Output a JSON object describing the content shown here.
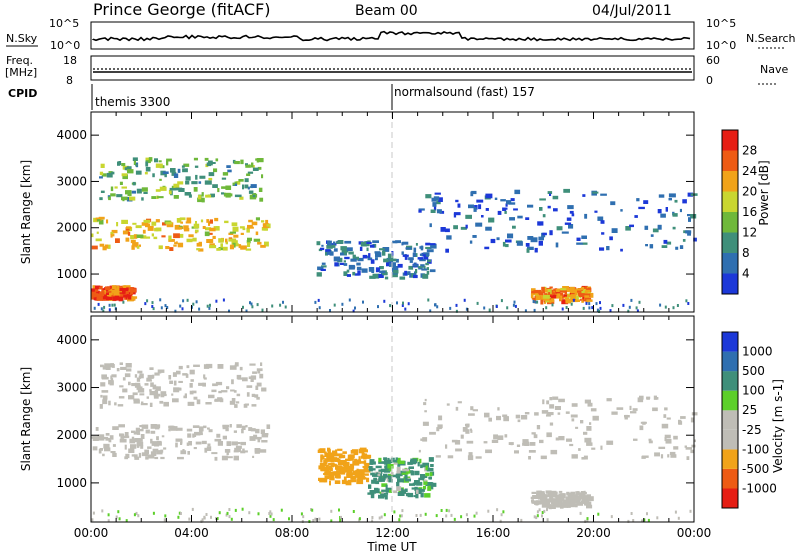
{
  "header": {
    "station": "Prince George (fitACF)",
    "beam": "Beam 00",
    "date": "04/Jul/2011"
  },
  "summary": {
    "nsky_label": "N.Sky",
    "nsky_ticks": [
      "10^5",
      "10^0"
    ],
    "nsearch_label": "N.Search",
    "nsearch_ticks": [
      "10^5",
      "10^0"
    ],
    "freq_label": "Freq.",
    "freq_unit": "[MHz]",
    "freq_ticks": [
      "18",
      "8"
    ],
    "nave_label": "Nave",
    "nave_ticks": [
      "60",
      "0"
    ],
    "cpid_label": "CPID",
    "cpid_segments": [
      {
        "start": "00:00",
        "name": "themis 3300"
      },
      {
        "start": "12:00",
        "name": "normalsound (fast) 157"
      }
    ]
  },
  "chart_data": [
    {
      "type": "heatmap",
      "title": "Power",
      "ylabel": "Slant Range [km]",
      "xlabel": "",
      "ylim": [
        180,
        4500
      ],
      "yticks": [
        "1000",
        "2000",
        "3000",
        "4000"
      ],
      "colorbar": {
        "label": "Power [dB]",
        "ticks": [
          "4",
          "8",
          "12",
          "16",
          "20",
          "24",
          "28"
        ]
      },
      "regions": [
        {
          "t": [
            0.0,
            7.0
          ],
          "range_km": [
            1500,
            2200
          ],
          "db": 22
        },
        {
          "t": [
            0.3,
            6.8
          ],
          "range_km": [
            2600,
            3500
          ],
          "db": 14
        },
        {
          "t": [
            0.0,
            1.6
          ],
          "range_km": [
            450,
            720
          ],
          "db": 28
        },
        {
          "t": [
            8.9,
            13.5
          ],
          "range_km": [
            900,
            1700
          ],
          "db": 9
        },
        {
          "t": [
            13.0,
            24.0
          ],
          "range_km": [
            1500,
            2800
          ],
          "db": 7
        },
        {
          "t": [
            17.5,
            19.8
          ],
          "range_km": [
            400,
            700
          ],
          "db": 26
        }
      ]
    },
    {
      "type": "heatmap",
      "title": "Velocity",
      "ylabel": "Slant Range [km]",
      "xlabel": "Time UT",
      "ylim": [
        180,
        4500
      ],
      "yticks": [
        "1000",
        "2000",
        "3000",
        "4000"
      ],
      "xticks": [
        "00:00",
        "04:00",
        "08:00",
        "12:00",
        "16:00",
        "20:00",
        "00:00"
      ],
      "colorbar": {
        "label": "Velocity [m s-1]",
        "ticks": [
          "1000",
          "500",
          "100",
          "25",
          "-25",
          "-100",
          "-500",
          "-1000"
        ]
      },
      "regions": [
        {
          "t": [
            0.0,
            7.0
          ],
          "range_km": [
            1500,
            2200
          ],
          "v": 0
        },
        {
          "t": [
            0.3,
            6.8
          ],
          "range_km": [
            2600,
            3500
          ],
          "v": 0
        },
        {
          "t": [
            9.0,
            11.0
          ],
          "range_km": [
            1000,
            1700
          ],
          "v": -300
        },
        {
          "t": [
            11.0,
            13.5
          ],
          "range_km": [
            700,
            1500
          ],
          "v": 150
        },
        {
          "t": [
            13.0,
            24.0
          ],
          "range_km": [
            1500,
            2800
          ],
          "v": 0
        },
        {
          "t": [
            17.5,
            19.8
          ],
          "range_km": [
            500,
            800
          ],
          "v": 0
        }
      ]
    }
  ],
  "colors": {
    "power_scale": [
      "#1c38d8",
      "#2f6fb0",
      "#3f8f7a",
      "#6fb83a",
      "#c9d630",
      "#f1a319",
      "#ee5b14",
      "#e61e14"
    ],
    "velocity_scale": [
      "#e61e14",
      "#ee5b14",
      "#f1a319",
      "#bfbdb6",
      "#bfbdb6",
      "#5ccf2a",
      "#3f8f7a",
      "#2f6fb0",
      "#1c38d8"
    ]
  }
}
